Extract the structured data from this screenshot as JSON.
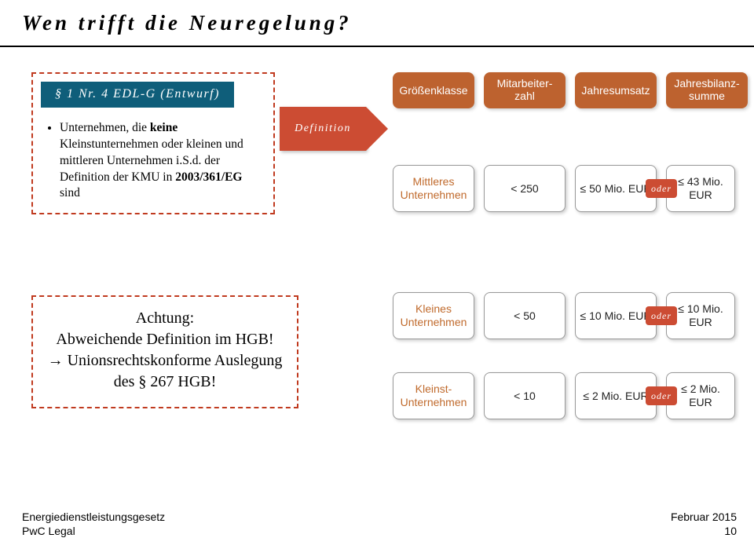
{
  "title": "Wen trifft die Neuregelung?",
  "left1": {
    "subhead": "§ 1 Nr. 4 EDL-G (Entwurf)",
    "bullets": [
      {
        "pre": "Unternehmen, die ",
        "b": "keine",
        "post": " Kleinstunternehmen oder kleinen und mittleren Unternehmen i.S.d. der Definition der KMU in ",
        "b2": "2003/361/EG",
        "post2": " sind"
      }
    ]
  },
  "left2": {
    "line1": "Achtung:",
    "line2": "Abweichende Definition im HGB!",
    "line3a": "→",
    "line3b": " Unionsrechtskonforme Auslegung des § 267 HGB!"
  },
  "defArrow": "Definition",
  "headers": {
    "c1": "Größenklasse",
    "c2": "Mitarbeiter-zahl",
    "c3": "Jahresumsatz",
    "c4": "Jahresbilanz-summe"
  },
  "rows": {
    "A": {
      "name": "Mittleres Unternehmen",
      "count": "< 250",
      "rev": "≤ 50 Mio. EUR",
      "bal": "≤ 43 Mio. EUR"
    },
    "B": {
      "name": "Kleines Unternehmen",
      "count": "< 50",
      "rev": "≤ 10 Mio. EUR",
      "bal": "≤ 10 Mio. EUR"
    },
    "C": {
      "name": "Kleinst-Unternehmen",
      "count": "< 10",
      "rev": "≤ 2 Mio. EUR",
      "bal": "≤ 2 Mio. EUR"
    }
  },
  "or": "oder",
  "footer": {
    "left1": "Energiedienstleistungsgesetz",
    "left2": "PwC Legal",
    "right1": "Februar 2015",
    "right2": "10"
  },
  "colors": {
    "dash": "#c03a1f",
    "headerBox": "#bd622f",
    "arrow": "#cc4c33",
    "subheadBg": "#0f5e7a"
  }
}
